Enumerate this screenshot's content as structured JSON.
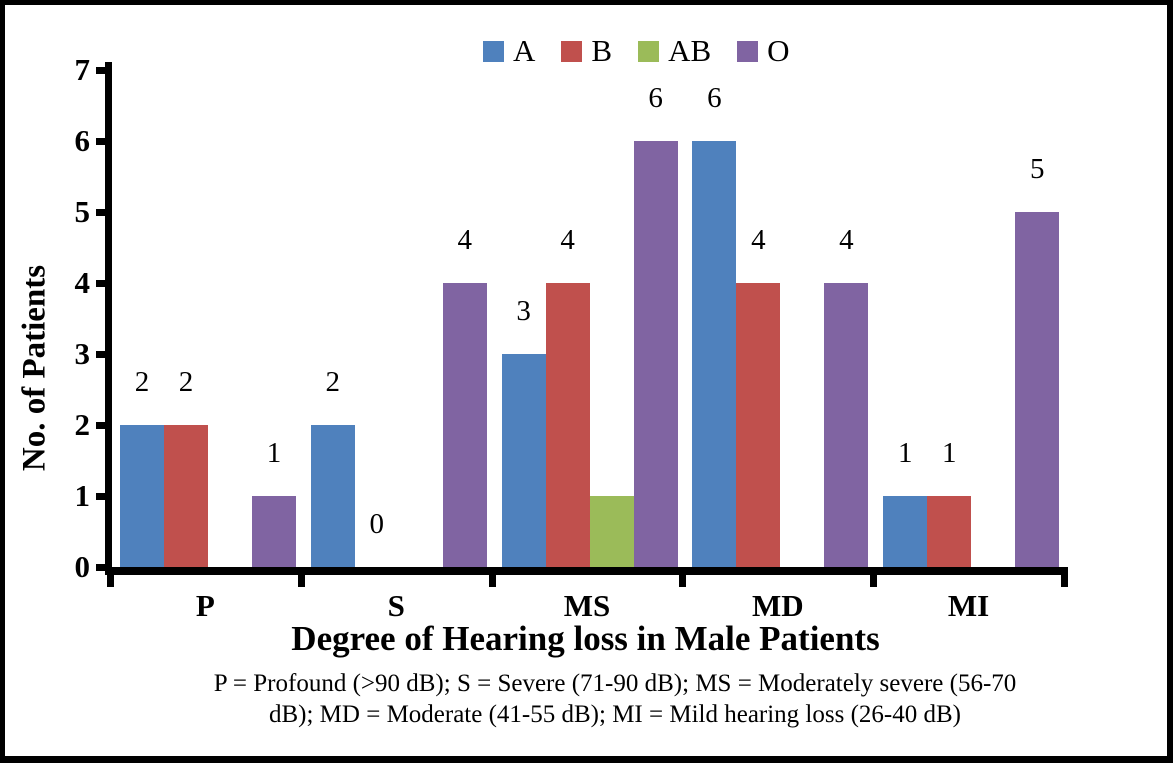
{
  "chart_data": {
    "type": "bar",
    "xlabel": "Degree of Hearing loss in Male Patients",
    "ylabel": "No. of Patients",
    "categories": [
      "P",
      "S",
      "MS",
      "MD",
      "MI"
    ],
    "series": [
      {
        "name": "A",
        "color": "#4F81BD",
        "values": [
          2,
          2,
          3,
          6,
          1
        ],
        "show_labels": true
      },
      {
        "name": "B",
        "color": "#C0504D",
        "values": [
          2,
          0,
          4,
          4,
          1
        ],
        "show_labels": true
      },
      {
        "name": "AB",
        "color": "#9BBB59",
        "values": [
          null,
          null,
          1,
          null,
          null
        ],
        "show_labels": false
      },
      {
        "name": "O",
        "color": "#8064A2",
        "values": [
          1,
          4,
          6,
          4,
          5
        ],
        "show_labels": true
      }
    ],
    "ylim": [
      0,
      7
    ],
    "yticks": [
      0,
      1,
      2,
      3,
      4,
      5,
      6,
      7
    ],
    "grid": false,
    "legend_position": "top",
    "caption_lines": [
      "P = Profound (>90 dB); S = Severe (71-90 dB); MS = Moderately severe (56-70",
      "dB); MD = Moderate (41-55 dB); MI = Mild hearing loss (26-40 dB)"
    ]
  }
}
